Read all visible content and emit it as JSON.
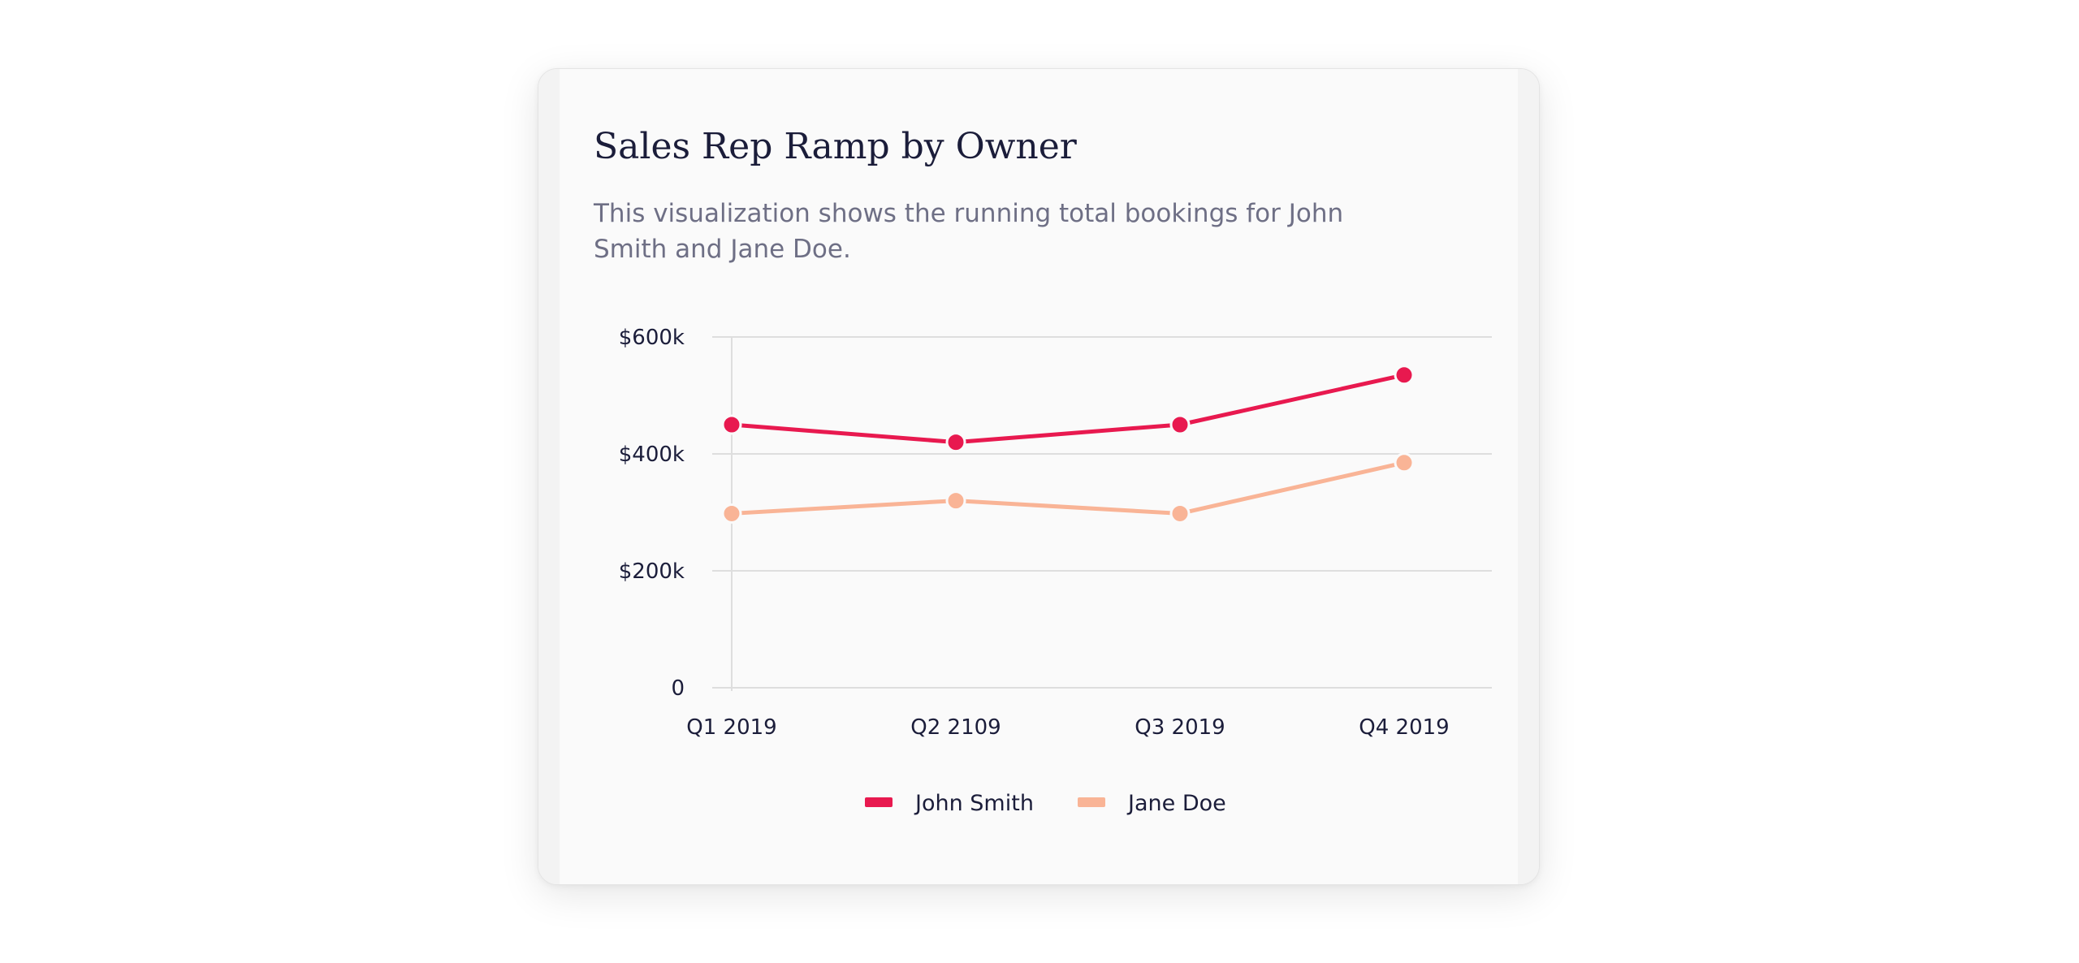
{
  "card": {
    "title": "Sales Rep Ramp by Owner",
    "subtitle": "This visualization shows the running total bookings for John Smith and Jane Doe."
  },
  "chart_data": {
    "type": "line",
    "categories": [
      "Q1 2019",
      "Q2 2109",
      "Q3 2019",
      "Q4 2019"
    ],
    "series": [
      {
        "name": "John Smith",
        "color": "#e8194f",
        "values": [
          450,
          420,
          450,
          535
        ]
      },
      {
        "name": "Jane Doe",
        "color": "#f9b496",
        "values": [
          298,
          320,
          298,
          385
        ]
      }
    ],
    "y_ticks": [
      {
        "value": 0,
        "label": "0"
      },
      {
        "value": 200,
        "label": "$200k"
      },
      {
        "value": 400,
        "label": "$400k"
      },
      {
        "value": 600,
        "label": "$600k"
      }
    ],
    "ylim": [
      0,
      600
    ],
    "y_unit": "$k",
    "grid": true,
    "legend_position": "bottom-center"
  }
}
